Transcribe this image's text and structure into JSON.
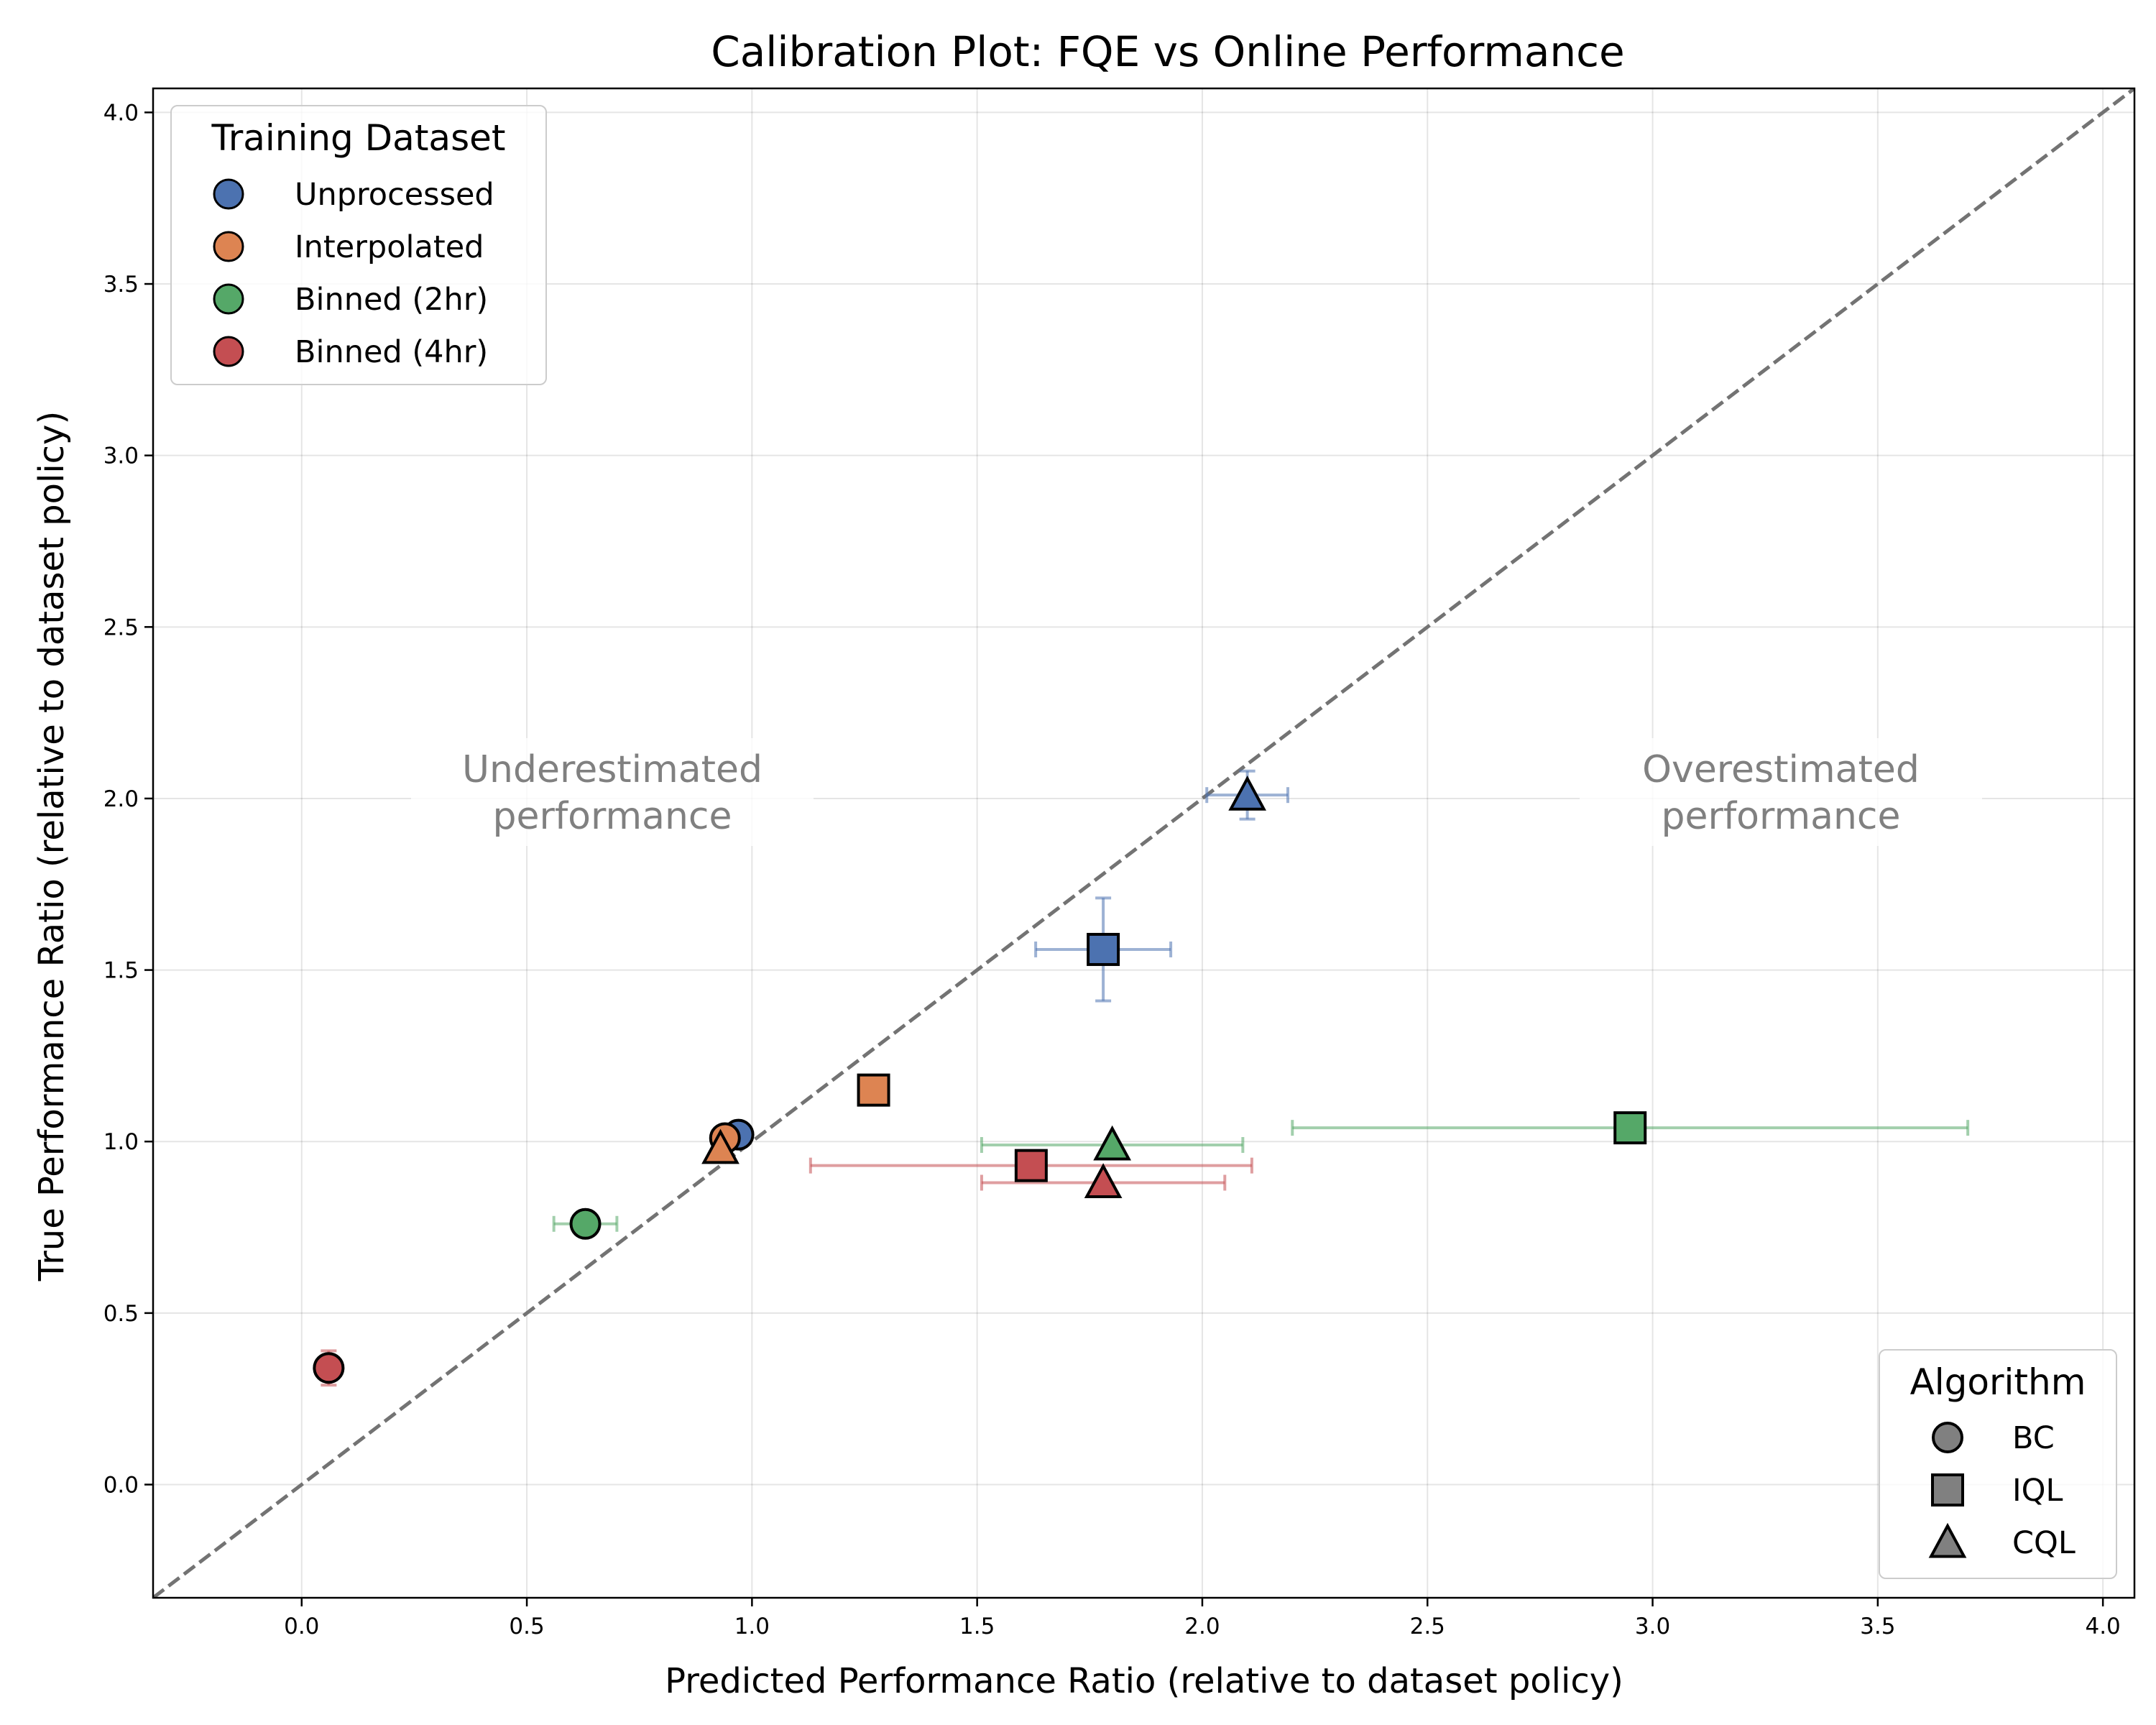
{
  "chart_data": {
    "type": "scatter",
    "title": "Calibration Plot: FQE vs Online Performance",
    "xlabel": "Predicted Performance Ratio (relative to dataset policy)",
    "ylabel": "True Performance Ratio (relative to dataset policy)",
    "xlim": [
      -0.33,
      4.07
    ],
    "ylim": [
      -0.33,
      4.07
    ],
    "xticks": [
      "0.0",
      "0.5",
      "1.0",
      "1.5",
      "2.0",
      "2.5",
      "3.0",
      "3.5",
      "4.0"
    ],
    "yticks": [
      "0.0",
      "0.5",
      "1.0",
      "1.5",
      "2.0",
      "2.5",
      "3.0",
      "3.5",
      "4.0"
    ],
    "grid": true,
    "reference_line": "y = x",
    "annotations": {
      "under": [
        "Underestimated",
        "performance"
      ],
      "over": [
        "Overestimated",
        "performance"
      ]
    },
    "colors": {
      "Unprocessed": "#4c72b0",
      "Interpolated": "#dd8452",
      "Binned (2hr)": "#55a868",
      "Binned (4hr)": "#c44e52"
    },
    "legend_dataset": {
      "title": "Training Dataset",
      "placement": "top-left",
      "entries": [
        "Unprocessed",
        "Interpolated",
        "Binned (2hr)",
        "Binned (4hr)"
      ]
    },
    "legend_algorithm": {
      "title": "Algorithm",
      "placement": "bottom-right",
      "entries": [
        {
          "label": "BC",
          "marker": "circle"
        },
        {
          "label": "IQL",
          "marker": "square"
        },
        {
          "label": "CQL",
          "marker": "triangle"
        }
      ]
    },
    "points": [
      {
        "dataset": "Unprocessed",
        "algorithm": "CQL",
        "x": 2.1,
        "y": 2.01,
        "xerr": 0.09,
        "yerr": 0.07
      },
      {
        "dataset": "Unprocessed",
        "algorithm": "IQL",
        "x": 1.78,
        "y": 1.56,
        "xerr": 0.15,
        "yerr": 0.15
      },
      {
        "dataset": "Unprocessed",
        "algorithm": "BC",
        "x": 0.97,
        "y": 1.02,
        "xerr": 0,
        "yerr": 0
      },
      {
        "dataset": "Interpolated",
        "algorithm": "IQL",
        "x": 1.27,
        "y": 1.15,
        "xerr": 0,
        "yerr": 0
      },
      {
        "dataset": "Interpolated",
        "algorithm": "BC",
        "x": 0.94,
        "y": 1.01,
        "xerr": 0,
        "yerr": 0
      },
      {
        "dataset": "Interpolated",
        "algorithm": "CQL",
        "x": 0.93,
        "y": 0.98,
        "xerr": 0,
        "yerr": 0
      },
      {
        "dataset": "Binned (2hr)",
        "algorithm": "IQL",
        "x": 2.95,
        "y": 1.04,
        "xerr": 0.75,
        "yerr": 0
      },
      {
        "dataset": "Binned (2hr)",
        "algorithm": "CQL",
        "x": 1.8,
        "y": 0.99,
        "xerr": 0.29,
        "yerr": 0
      },
      {
        "dataset": "Binned (2hr)",
        "algorithm": "BC",
        "x": 0.63,
        "y": 0.76,
        "xerr": 0.07,
        "yerr": 0
      },
      {
        "dataset": "Binned (4hr)",
        "algorithm": "IQL",
        "x": 1.62,
        "y": 0.93,
        "xerr": 0.49,
        "yerr": 0
      },
      {
        "dataset": "Binned (4hr)",
        "algorithm": "CQL",
        "x": 1.78,
        "y": 0.88,
        "xerr": 0.27,
        "yerr": 0
      },
      {
        "dataset": "Binned (4hr)",
        "algorithm": "BC",
        "x": 0.06,
        "y": 0.34,
        "xerr": 0,
        "yerr": 0.05
      }
    ]
  }
}
